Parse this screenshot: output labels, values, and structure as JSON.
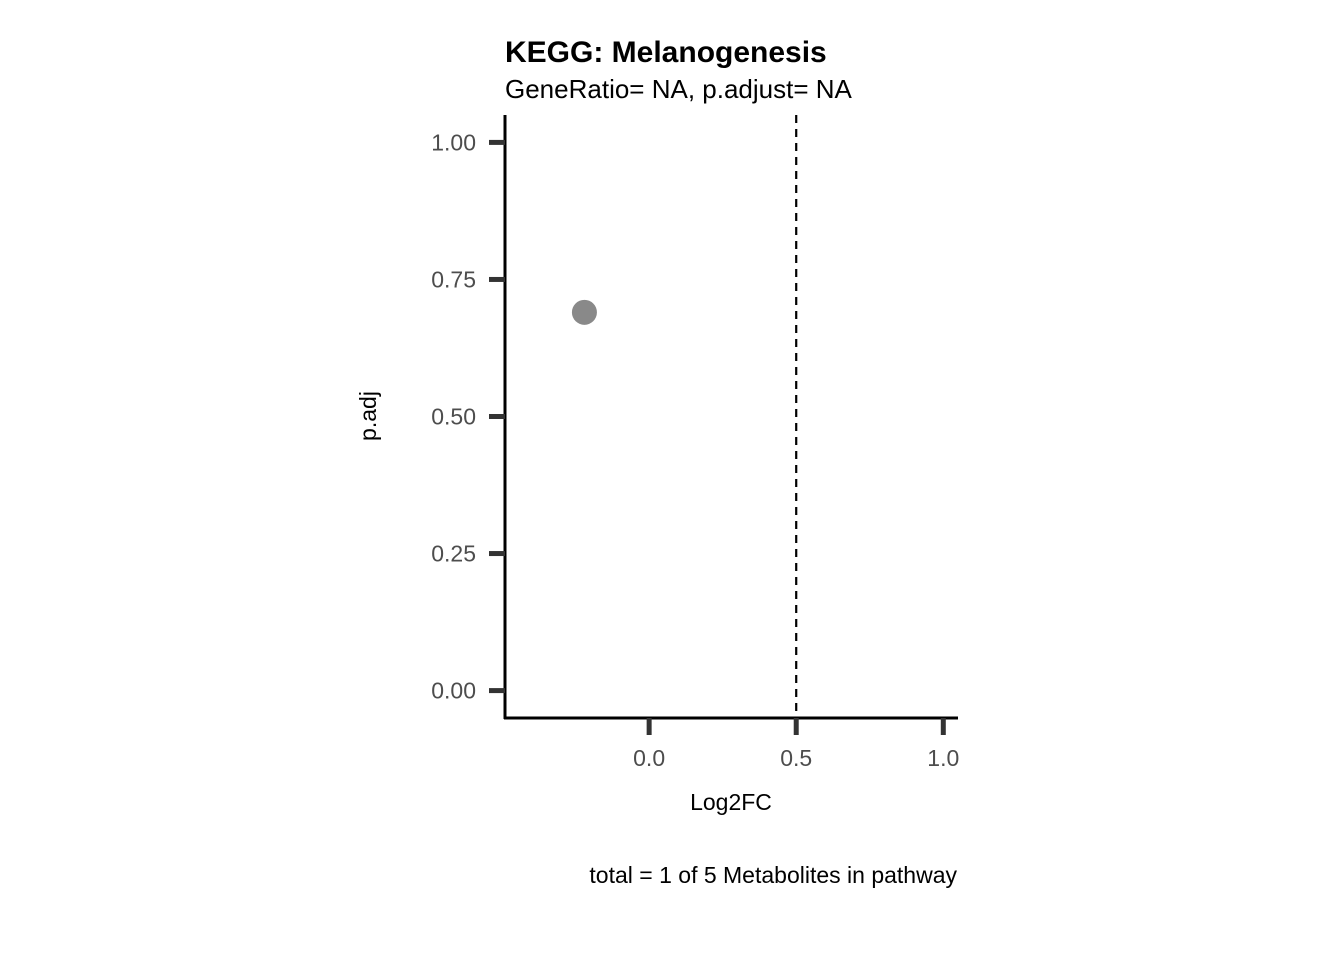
{
  "chart_data": {
    "type": "scatter",
    "title": "KEGG: Melanogenesis",
    "subtitle": "GeneRatio= NA, p.adjust= NA",
    "xlabel": "Log2FC",
    "ylabel": "p.adj",
    "caption": "total = 1 of 5 Metabolites in pathway",
    "xlim": [
      -0.49,
      1.05
    ],
    "ylim": [
      -0.05,
      1.05
    ],
    "x_ticks": [
      0.0,
      0.5,
      1.0
    ],
    "x_tick_labels": [
      "0.0",
      "0.5",
      "1.0"
    ],
    "y_ticks": [
      0.0,
      0.25,
      0.5,
      0.75,
      1.0
    ],
    "y_tick_labels": [
      "0.00",
      "0.25",
      "0.50",
      "0.75",
      "1.00"
    ],
    "vline": {
      "x": 0.5,
      "style": "dashed"
    },
    "grid": false,
    "points": [
      {
        "x": -0.22,
        "y": 0.69
      }
    ],
    "colors": {
      "point": "#898989",
      "axis": "#000000",
      "tick": "#333333",
      "tick_label": "#4d4d4d"
    }
  }
}
